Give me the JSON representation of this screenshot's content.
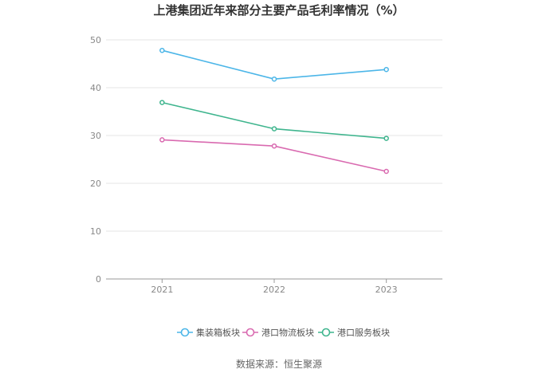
{
  "chart_data": {
    "type": "line",
    "title": "上港集团近年来部分主要产品毛利率情况（%）",
    "categories": [
      "2021",
      "2022",
      "2023"
    ],
    "ylim": [
      0,
      50
    ],
    "yticks": [
      "0",
      "10",
      "20",
      "30",
      "40",
      "50"
    ],
    "grid": true,
    "legend_position": "bottom",
    "series": [
      {
        "name": "集装箱板块",
        "values": [
          47.8,
          41.8,
          43.8
        ],
        "color": "#4cb6e8"
      },
      {
        "name": "港口物流板块",
        "values": [
          29.1,
          27.8,
          22.5
        ],
        "color": "#d96ab0"
      },
      {
        "name": "港口服务板块",
        "values": [
          36.9,
          31.4,
          29.4
        ],
        "color": "#3fb58e"
      }
    ]
  },
  "source": "数据来源：恒生聚源"
}
